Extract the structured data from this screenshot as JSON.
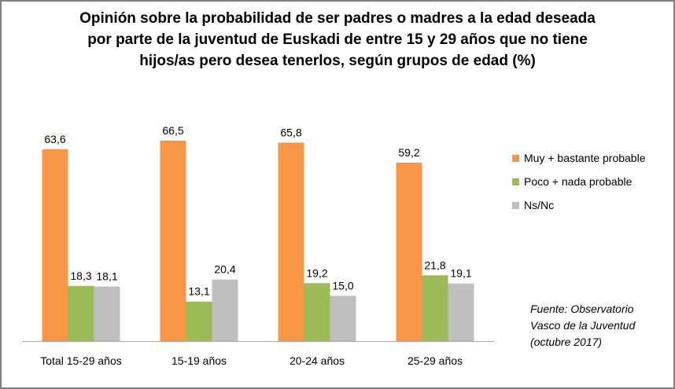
{
  "chart_data": {
    "type": "bar",
    "title_lines": [
      "Opinión sobre la probabilidad de ser padres o madres a la edad deseada",
      "por parte de la juventud de Euskadi de entre 15 y 29 años que no tiene",
      "hijos/as pero desea tenerlos, según grupos de edad (%)"
    ],
    "categories": [
      "Total 15-29 años",
      "15-19 años",
      "20-24 años",
      "25-29 años"
    ],
    "series": [
      {
        "name": "Muy + bastante probable",
        "color": "#f79646",
        "values": [
          63.6,
          66.5,
          65.8,
          59.2
        ],
        "labels": [
          "63,6",
          "66,5",
          "65,8",
          "59,2"
        ]
      },
      {
        "name": "Poco + nada probable",
        "color": "#9bbb59",
        "values": [
          18.3,
          13.1,
          19.2,
          21.8
        ],
        "labels": [
          "18,3",
          "13,1",
          "19,2",
          "21,8"
        ]
      },
      {
        "name": "Ns/Nc",
        "color": "#bfbfbf",
        "values": [
          18.1,
          20.4,
          15.0,
          19.1
        ],
        "labels": [
          "18,1",
          "20,4",
          "15,0",
          "19,1"
        ]
      }
    ],
    "xlabel": "",
    "ylabel": "",
    "ylim": [
      0,
      70
    ],
    "grid": false,
    "legend": "right",
    "source_lines": [
      "Fuente: Observatorio",
      "Vasco de la Juventud",
      "(octubre 2017)"
    ]
  }
}
